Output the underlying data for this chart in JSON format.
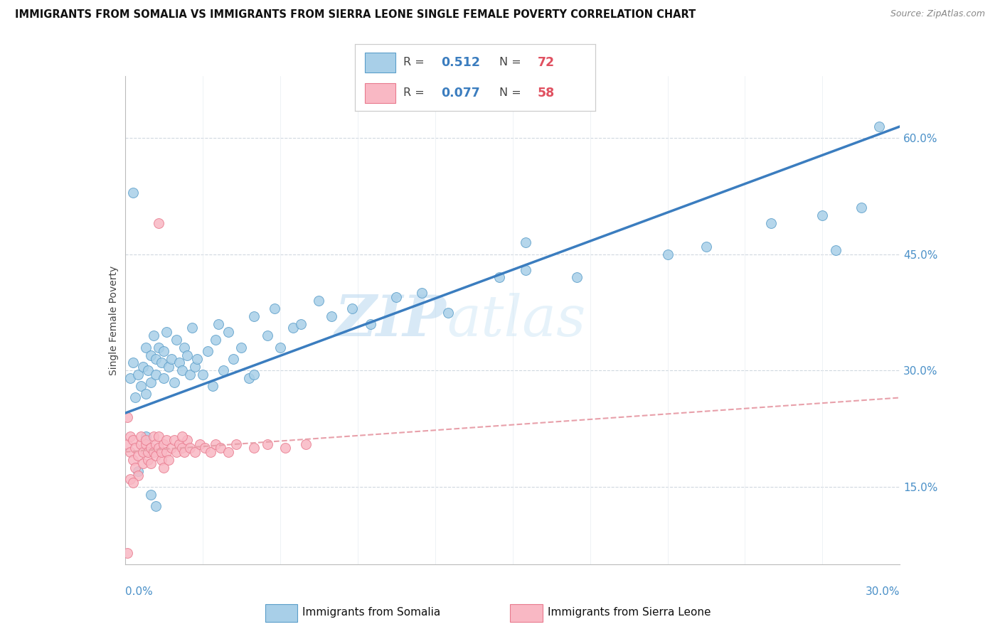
{
  "title": "IMMIGRANTS FROM SOMALIA VS IMMIGRANTS FROM SIERRA LEONE SINGLE FEMALE POVERTY CORRELATION CHART",
  "source": "Source: ZipAtlas.com",
  "ylabel": "Single Female Poverty",
  "right_yticks": [
    0.15,
    0.3,
    0.45,
    0.6
  ],
  "right_ytick_labels": [
    "15.0%",
    "30.0%",
    "45.0%",
    "60.0%"
  ],
  "xmin": 0.0,
  "xmax": 0.3,
  "ymin": 0.05,
  "ymax": 0.68,
  "somalia_color": "#a8cfe8",
  "somalia_edge": "#5b9ec9",
  "sierra_leone_color": "#f9b8c4",
  "sierra_leone_edge": "#e87a8e",
  "somalia_R": 0.512,
  "somalia_N": 72,
  "sierra_leone_R": 0.077,
  "sierra_leone_N": 58,
  "trend_somalia_color": "#3b7dbf",
  "trend_sierra_color": "#e8a0aa",
  "watermark_zip": "ZIP",
  "watermark_atlas": "atlas",
  "legend_label_somalia": "Immigrants from Somalia",
  "legend_label_sierra": "Immigrants from Sierra Leone",
  "trend_somalia_x0": 0.0,
  "trend_somalia_y0": 0.245,
  "trend_somalia_x1": 0.3,
  "trend_somalia_y1": 0.615,
  "trend_sierra_x0": 0.0,
  "trend_sierra_y0": 0.195,
  "trend_sierra_x1": 0.3,
  "trend_sierra_y1": 0.265
}
